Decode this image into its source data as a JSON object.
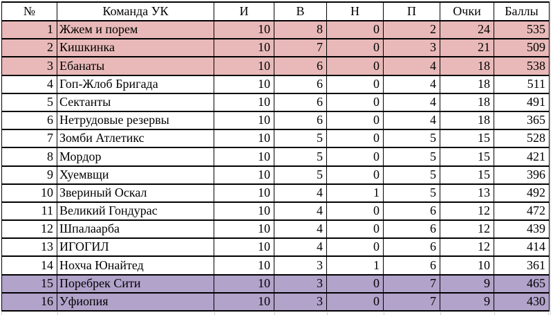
{
  "table": {
    "columns": [
      {
        "key": "num",
        "label": "№",
        "align": "right"
      },
      {
        "key": "team",
        "label": "Команда УК",
        "align": "left"
      },
      {
        "key": "played",
        "label": "И",
        "align": "right"
      },
      {
        "key": "wins",
        "label": "В",
        "align": "right"
      },
      {
        "key": "draws",
        "label": "Н",
        "align": "right"
      },
      {
        "key": "losses",
        "label": "П",
        "align": "right"
      },
      {
        "key": "points",
        "label": "Очки",
        "align": "right"
      },
      {
        "key": "score",
        "label": "Баллы",
        "align": "right"
      }
    ],
    "highlight_colors": {
      "pink": "#e8b9b8",
      "purple": "#b2a3ca",
      "none": "#ffffff"
    },
    "rows": [
      {
        "num": 1,
        "team": "Жжем и порем",
        "played": 10,
        "wins": 8,
        "draws": 0,
        "losses": 2,
        "points": 24,
        "score": 535,
        "highlight": "pink"
      },
      {
        "num": 2,
        "team": "Кишкинка",
        "played": 10,
        "wins": 7,
        "draws": 0,
        "losses": 3,
        "points": 21,
        "score": 509,
        "highlight": "pink"
      },
      {
        "num": 3,
        "team": "Ебанаты",
        "played": 10,
        "wins": 6,
        "draws": 0,
        "losses": 4,
        "points": 18,
        "score": 538,
        "highlight": "pink"
      },
      {
        "num": 4,
        "team": "Гоп-Жлоб Бригада",
        "played": 10,
        "wins": 6,
        "draws": 0,
        "losses": 4,
        "points": 18,
        "score": 511,
        "highlight": "none"
      },
      {
        "num": 5,
        "team": "Сектанты",
        "played": 10,
        "wins": 6,
        "draws": 0,
        "losses": 4,
        "points": 18,
        "score": 491,
        "highlight": "none"
      },
      {
        "num": 6,
        "team": "Нетрудовые резервы",
        "played": 10,
        "wins": 6,
        "draws": 0,
        "losses": 4,
        "points": 18,
        "score": 365,
        "highlight": "none"
      },
      {
        "num": 7,
        "team": "Зомби Атлетикс",
        "played": 10,
        "wins": 5,
        "draws": 0,
        "losses": 5,
        "points": 15,
        "score": 528,
        "highlight": "none"
      },
      {
        "num": 8,
        "team": "Мордор",
        "played": 10,
        "wins": 5,
        "draws": 0,
        "losses": 5,
        "points": 15,
        "score": 421,
        "highlight": "none"
      },
      {
        "num": 9,
        "team": "Хуемвщи",
        "played": 10,
        "wins": 5,
        "draws": 0,
        "losses": 5,
        "points": 15,
        "score": 396,
        "highlight": "none"
      },
      {
        "num": 10,
        "team": "Звериный Оскал",
        "played": 10,
        "wins": 4,
        "draws": 1,
        "losses": 5,
        "points": 13,
        "score": 492,
        "highlight": "none"
      },
      {
        "num": 11,
        "team": "Великий Гондурас",
        "played": 10,
        "wins": 4,
        "draws": 0,
        "losses": 6,
        "points": 12,
        "score": 472,
        "highlight": "none"
      },
      {
        "num": 12,
        "team": "Шпалаарба",
        "played": 10,
        "wins": 4,
        "draws": 0,
        "losses": 6,
        "points": 12,
        "score": 439,
        "highlight": "none"
      },
      {
        "num": 13,
        "team": "ИГОГИЛ",
        "played": 10,
        "wins": 4,
        "draws": 0,
        "losses": 6,
        "points": 12,
        "score": 414,
        "highlight": "none"
      },
      {
        "num": 14,
        "team": "Нохча Юнайтед",
        "played": 10,
        "wins": 3,
        "draws": 1,
        "losses": 6,
        "points": 10,
        "score": 361,
        "highlight": "none"
      },
      {
        "num": 15,
        "team": "Поребрек Сити",
        "played": 10,
        "wins": 3,
        "draws": 0,
        "losses": 7,
        "points": 9,
        "score": 465,
        "highlight": "purple"
      },
      {
        "num": 16,
        "team": "Уфиопия",
        "played": 10,
        "wins": 3,
        "draws": 0,
        "losses": 7,
        "points": 9,
        "score": 430,
        "highlight": "purple"
      }
    ]
  }
}
